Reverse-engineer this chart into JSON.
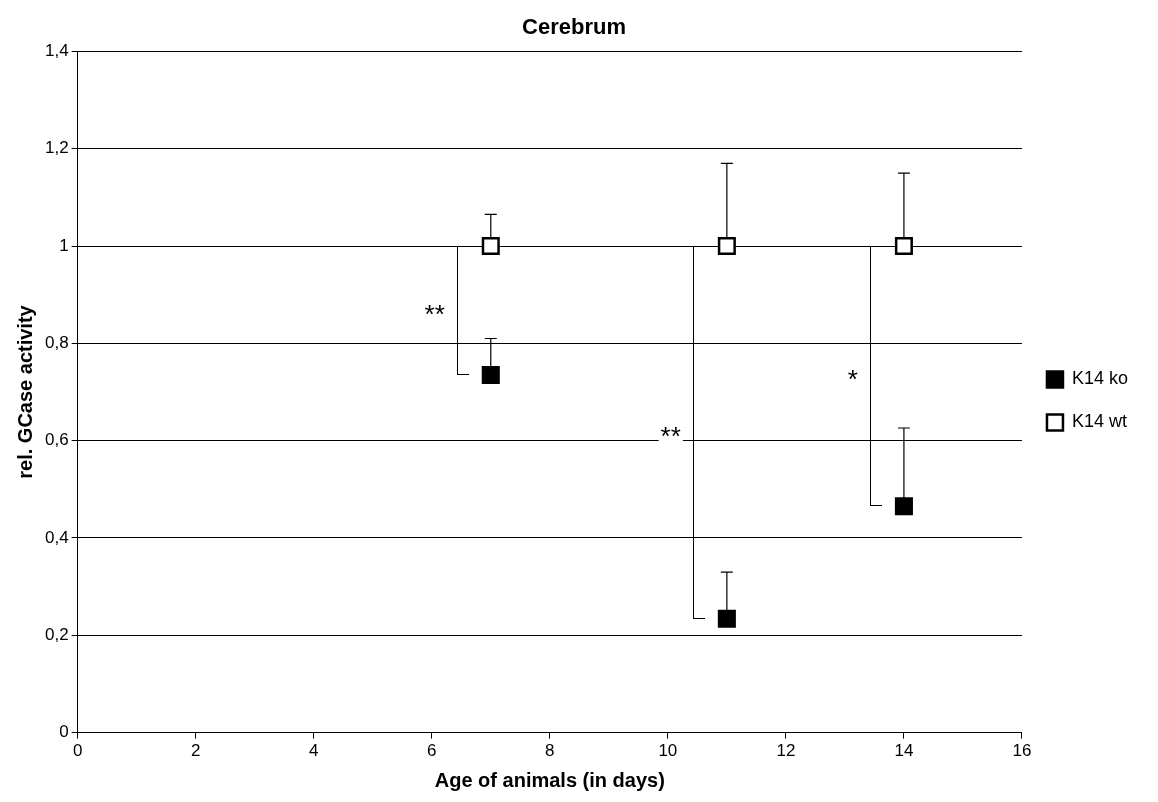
{
  "chart_data": {
    "type": "scatter",
    "title": "Cerebrum",
    "xlabel": "Age of animals (in days)",
    "ylabel": "rel. GCase activity",
    "xlim": [
      0,
      16
    ],
    "xticks": [
      0,
      2,
      4,
      6,
      8,
      10,
      12,
      14,
      16
    ],
    "ylim": [
      0,
      1.4
    ],
    "yticks": [
      0,
      {
        "value": 0.2,
        "label": "0,2"
      },
      {
        "value": 0.4,
        "label": "0,4"
      },
      {
        "value": 0.6,
        "label": "0,6"
      },
      {
        "value": 0.8,
        "label": "0,8"
      },
      1,
      {
        "value": 1.2,
        "label": "1,2"
      },
      {
        "value": 1.4,
        "label": "1,4"
      }
    ],
    "grid": "y",
    "legend": "right",
    "marker": "square",
    "series": [
      {
        "name": "K14 ko",
        "color": "#000000",
        "x": [
          7,
          11,
          14
        ],
        "values": [
          0.735,
          0.234,
          0.465
        ],
        "errors": [
          [
            0.735,
            0.81
          ],
          [
            0.234,
            0.33
          ],
          [
            0.465,
            0.626
          ]
        ]
      },
      {
        "name": "K14 wt",
        "color": "#ffffff",
        "x": [
          7,
          11,
          14
        ],
        "values": [
          1,
          1,
          1
        ],
        "errors": [
          [
            1,
            1.065
          ],
          [
            1,
            1.17
          ],
          [
            1,
            1.15
          ]
        ]
      }
    ],
    "annotations": [
      "**",
      "**",
      "*"
    ]
  }
}
